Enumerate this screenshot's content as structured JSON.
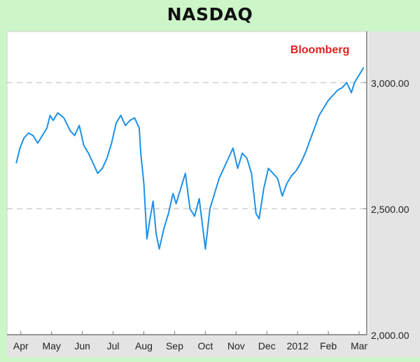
{
  "chart_data": {
    "type": "line",
    "title": "NASDAQ",
    "annotation": "Bloomberg",
    "xlabel": "",
    "ylabel": "",
    "ylim": [
      2000,
      3100
    ],
    "yticks": [
      {
        "value": 3000,
        "label": "3,000.00"
      },
      {
        "value": 2500,
        "label": "2,500.00"
      },
      {
        "value": 2000,
        "label": "2,000.00"
      }
    ],
    "xticks": [
      {
        "t": 0.15,
        "label": "Apr"
      },
      {
        "t": 1.15,
        "label": "May"
      },
      {
        "t": 2.15,
        "label": "Jun"
      },
      {
        "t": 3.15,
        "label": "Jul"
      },
      {
        "t": 4.15,
        "label": "Aug"
      },
      {
        "t": 5.15,
        "label": "Sep"
      },
      {
        "t": 6.15,
        "label": "Oct"
      },
      {
        "t": 7.15,
        "label": "Nov"
      },
      {
        "t": 8.15,
        "label": "Dec"
      },
      {
        "t": 9.15,
        "label": "2012"
      },
      {
        "t": 10.15,
        "label": "Feb"
      },
      {
        "t": 11.15,
        "label": "Mar"
      }
    ],
    "grid": "horizontal dashed at 3,000 and 2,500",
    "line_color": "#1e90e8",
    "annotation_color": "#e0201e",
    "series": [
      {
        "points": [
          [
            0.0,
            2680
          ],
          [
            0.12,
            2740
          ],
          [
            0.25,
            2780
          ],
          [
            0.4,
            2800
          ],
          [
            0.55,
            2790
          ],
          [
            0.7,
            2760
          ],
          [
            0.85,
            2790
          ],
          [
            1.0,
            2820
          ],
          [
            1.1,
            2870
          ],
          [
            1.2,
            2850
          ],
          [
            1.35,
            2880
          ],
          [
            1.55,
            2860
          ],
          [
            1.75,
            2810
          ],
          [
            1.9,
            2790
          ],
          [
            2.05,
            2830
          ],
          [
            2.2,
            2750
          ],
          [
            2.35,
            2720
          ],
          [
            2.5,
            2680
          ],
          [
            2.65,
            2640
          ],
          [
            2.8,
            2660
          ],
          [
            2.95,
            2700
          ],
          [
            3.1,
            2760
          ],
          [
            3.25,
            2840
          ],
          [
            3.4,
            2870
          ],
          [
            3.55,
            2830
          ],
          [
            3.7,
            2850
          ],
          [
            3.85,
            2860
          ],
          [
            4.0,
            2820
          ],
          [
            4.05,
            2720
          ],
          [
            4.15,
            2600
          ],
          [
            4.25,
            2380
          ],
          [
            4.35,
            2460
          ],
          [
            4.45,
            2530
          ],
          [
            4.55,
            2400
          ],
          [
            4.65,
            2340
          ],
          [
            4.8,
            2420
          ],
          [
            4.95,
            2480
          ],
          [
            5.1,
            2560
          ],
          [
            5.2,
            2520
          ],
          [
            5.35,
            2580
          ],
          [
            5.5,
            2640
          ],
          [
            5.65,
            2500
          ],
          [
            5.8,
            2470
          ],
          [
            5.95,
            2540
          ],
          [
            6.05,
            2440
          ],
          [
            6.15,
            2340
          ],
          [
            6.3,
            2500
          ],
          [
            6.45,
            2560
          ],
          [
            6.6,
            2620
          ],
          [
            6.75,
            2660
          ],
          [
            6.9,
            2700
          ],
          [
            7.05,
            2740
          ],
          [
            7.2,
            2660
          ],
          [
            7.35,
            2720
          ],
          [
            7.5,
            2700
          ],
          [
            7.65,
            2640
          ],
          [
            7.8,
            2480
          ],
          [
            7.9,
            2460
          ],
          [
            8.05,
            2580
          ],
          [
            8.2,
            2660
          ],
          [
            8.35,
            2640
          ],
          [
            8.5,
            2620
          ],
          [
            8.65,
            2550
          ],
          [
            8.8,
            2600
          ],
          [
            8.95,
            2630
          ],
          [
            9.1,
            2650
          ],
          [
            9.25,
            2680
          ],
          [
            9.4,
            2720
          ],
          [
            9.55,
            2770
          ],
          [
            9.7,
            2820
          ],
          [
            9.85,
            2870
          ],
          [
            10.0,
            2900
          ],
          [
            10.15,
            2930
          ],
          [
            10.3,
            2950
          ],
          [
            10.45,
            2970
          ],
          [
            10.6,
            2980
          ],
          [
            10.75,
            3000
          ],
          [
            10.9,
            2960
          ],
          [
            11.0,
            3000
          ],
          [
            11.15,
            3030
          ],
          [
            11.3,
            3060
          ]
        ]
      }
    ]
  }
}
